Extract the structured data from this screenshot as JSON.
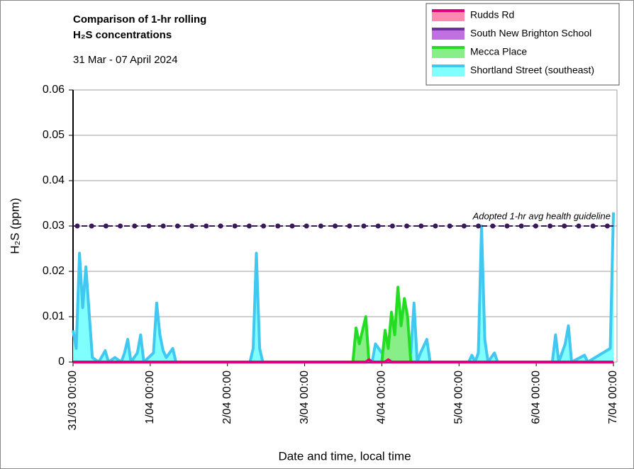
{
  "chart_data": {
    "type": "area",
    "title": "Comparison of 1-hr rolling",
    "title_line2": "H₂S concentrations",
    "subtitle": "31 Mar - 07 April 2024",
    "x_label": "Date and time, local time",
    "y_label": "H₂S (ppm)",
    "xlim": [
      "31/03 00:00",
      "7/04 00:00"
    ],
    "xticks": [
      "31/03 00:00",
      "1/04 00:00",
      "2/04 00:00",
      "3/04 00:00",
      "4/04 00:00",
      "5/04 00:00",
      "6/04 00:00",
      "7/04 00:00"
    ],
    "ylim": [
      0,
      0.06
    ],
    "yticks": [
      0,
      0.01,
      0.02,
      0.03,
      0.04,
      0.05,
      0.06
    ],
    "grid": true,
    "legend": "top-right",
    "guideline": {
      "label": "Adopted 1-hr avg health guideline",
      "value": 0.03,
      "color": "#3a1a5a"
    },
    "series": [
      {
        "name": "Shortland Street (southeast)",
        "color": "#40c8f0",
        "fill": "#80ffff",
        "x": [
          "31/03 00:00",
          "31/03 01:00",
          "31/03 02:00",
          "31/03 03:00",
          "31/03 04:00",
          "31/03 06:00",
          "31/03 08:00",
          "31/03 10:00",
          "31/03 11:00",
          "31/03 13:00",
          "31/03 15:00",
          "31/03 16:00",
          "31/03 17:00",
          "31/03 18:00",
          "31/03 20:00",
          "31/03 21:00",
          "31/03 22:00",
          "1/04 01:00",
          "1/04 02:00",
          "1/04 03:00",
          "1/04 04:00",
          "1/04 05:00",
          "1/04 07:00",
          "1/04 08:00",
          "2/04 07:00",
          "2/04 08:00",
          "2/04 09:00",
          "2/04 10:00",
          "2/04 11:00",
          "3/04 21:00",
          "3/04 22:00",
          "4/04 00:00",
          "4/04 09:00",
          "4/04 10:00",
          "4/04 11:00",
          "4/04 12:00",
          "4/04 14:00",
          "4/04 15:00",
          "5/04 03:00",
          "5/04 04:00",
          "5/04 05:00",
          "5/04 06:00",
          "5/04 07:00",
          "5/04 08:00",
          "5/04 09:00",
          "5/04 11:00",
          "5/04 12:00",
          "6/04 05:00",
          "6/04 06:00",
          "6/04 07:00",
          "6/04 09:00",
          "6/04 10:00",
          "6/04 11:00",
          "6/04 15:00",
          "6/04 16:00",
          "6/04 23:00",
          "7/04 00:00"
        ],
        "values": [
          0.007,
          0.003,
          0.024,
          0.012,
          0.021,
          0.001,
          0,
          0.0025,
          0,
          0.001,
          0,
          0.002,
          0.005,
          0,
          0.002,
          0.006,
          0,
          0.002,
          0.013,
          0.006,
          0.0025,
          0.001,
          0.003,
          0,
          0,
          0.003,
          0.024,
          0.003,
          0,
          0,
          0.004,
          0.002,
          0.002,
          0.013,
          0,
          0.002,
          0.005,
          0,
          0,
          0.0015,
          0,
          0.002,
          0.03,
          0.005,
          0,
          0.002,
          0,
          0,
          0.006,
          0,
          0.004,
          0.008,
          0,
          0.0015,
          0,
          0.003,
          0.033
        ]
      },
      {
        "name": "Mecca Place",
        "color": "#22dd22",
        "fill": "#88ee88",
        "x": [
          "31/03 00:00",
          "3/04 15:00",
          "3/04 16:00",
          "3/04 17:00",
          "3/04 19:00",
          "3/04 20:00",
          "4/04 00:00",
          "4/04 01:00",
          "4/04 02:00",
          "4/04 03:00",
          "4/04 04:00",
          "4/04 05:00",
          "4/04 06:00",
          "4/04 07:00",
          "4/04 08:00",
          "4/04 09:00",
          "7/04 00:00"
        ],
        "values": [
          0,
          0,
          0.0075,
          0.004,
          0.01,
          0,
          0,
          0.007,
          0.003,
          0.011,
          0.006,
          0.0165,
          0.008,
          0.014,
          0.01,
          0,
          0
        ]
      },
      {
        "name": "South New Brighton School",
        "color": "#7030a0",
        "fill": "#c070e0",
        "x": [
          "31/03 00:00",
          "7/04 00:00"
        ],
        "values": [
          0,
          0
        ]
      },
      {
        "name": "Rudds Rd",
        "color": "#e0007a",
        "fill": "#ff88b0",
        "x": [
          "31/03 00:00",
          "3/04 19:00",
          "3/04 20:00",
          "3/04 21:00",
          "4/04 01:00",
          "4/04 02:00",
          "4/04 03:00",
          "7/04 00:00"
        ],
        "values": [
          0,
          0,
          0.0005,
          0,
          0,
          0.0005,
          0,
          0
        ]
      }
    ]
  }
}
